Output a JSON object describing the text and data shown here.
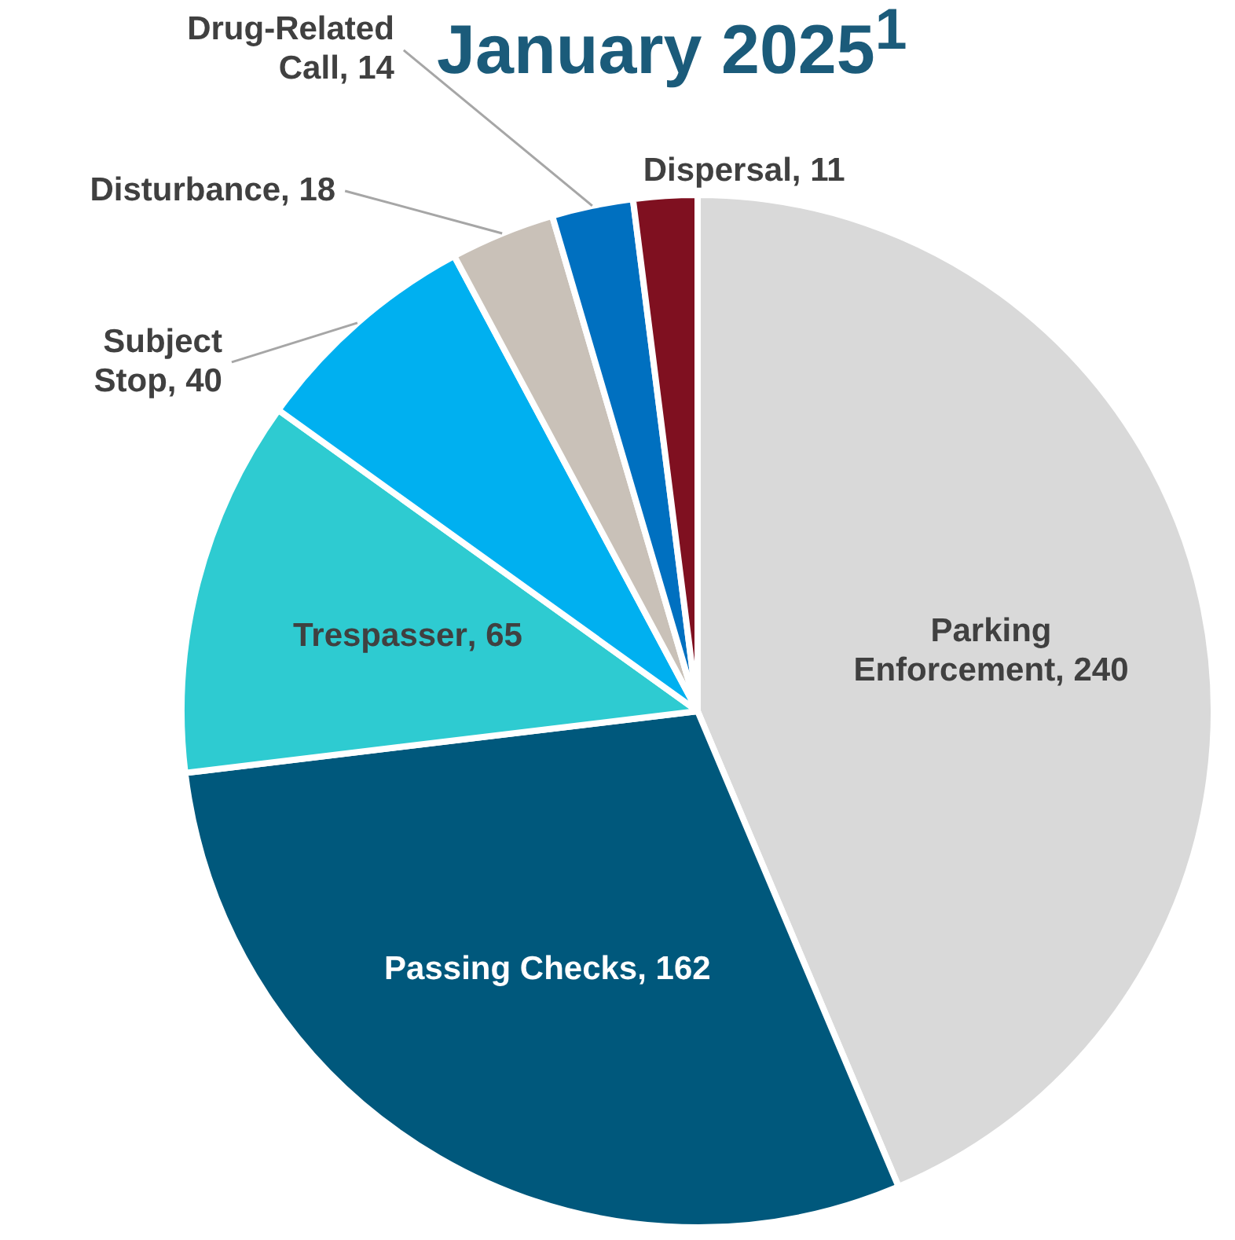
{
  "chart_data": {
    "type": "pie",
    "title": "January 2025$^{1}$",
    "categories": [
      "Parking Enforcement",
      "Passing Checks",
      "Trespasser",
      "Subject Stop",
      "Disturbance",
      "Drug-Related Call",
      "Dispersal"
    ],
    "values": [
      240,
      162,
      65,
      40,
      18,
      14,
      11
    ],
    "value_labels": [
      ", 240",
      ", 162",
      ", 65",
      ", 40",
      ", 18",
      ", 14",
      ", 11"
    ],
    "colors": [
      "#d9d9d9",
      "#00587c",
      "#2ecbd1",
      "#00b0f0",
      "#c9c1b8",
      "#0070c0",
      "#7f1020"
    ]
  }
}
